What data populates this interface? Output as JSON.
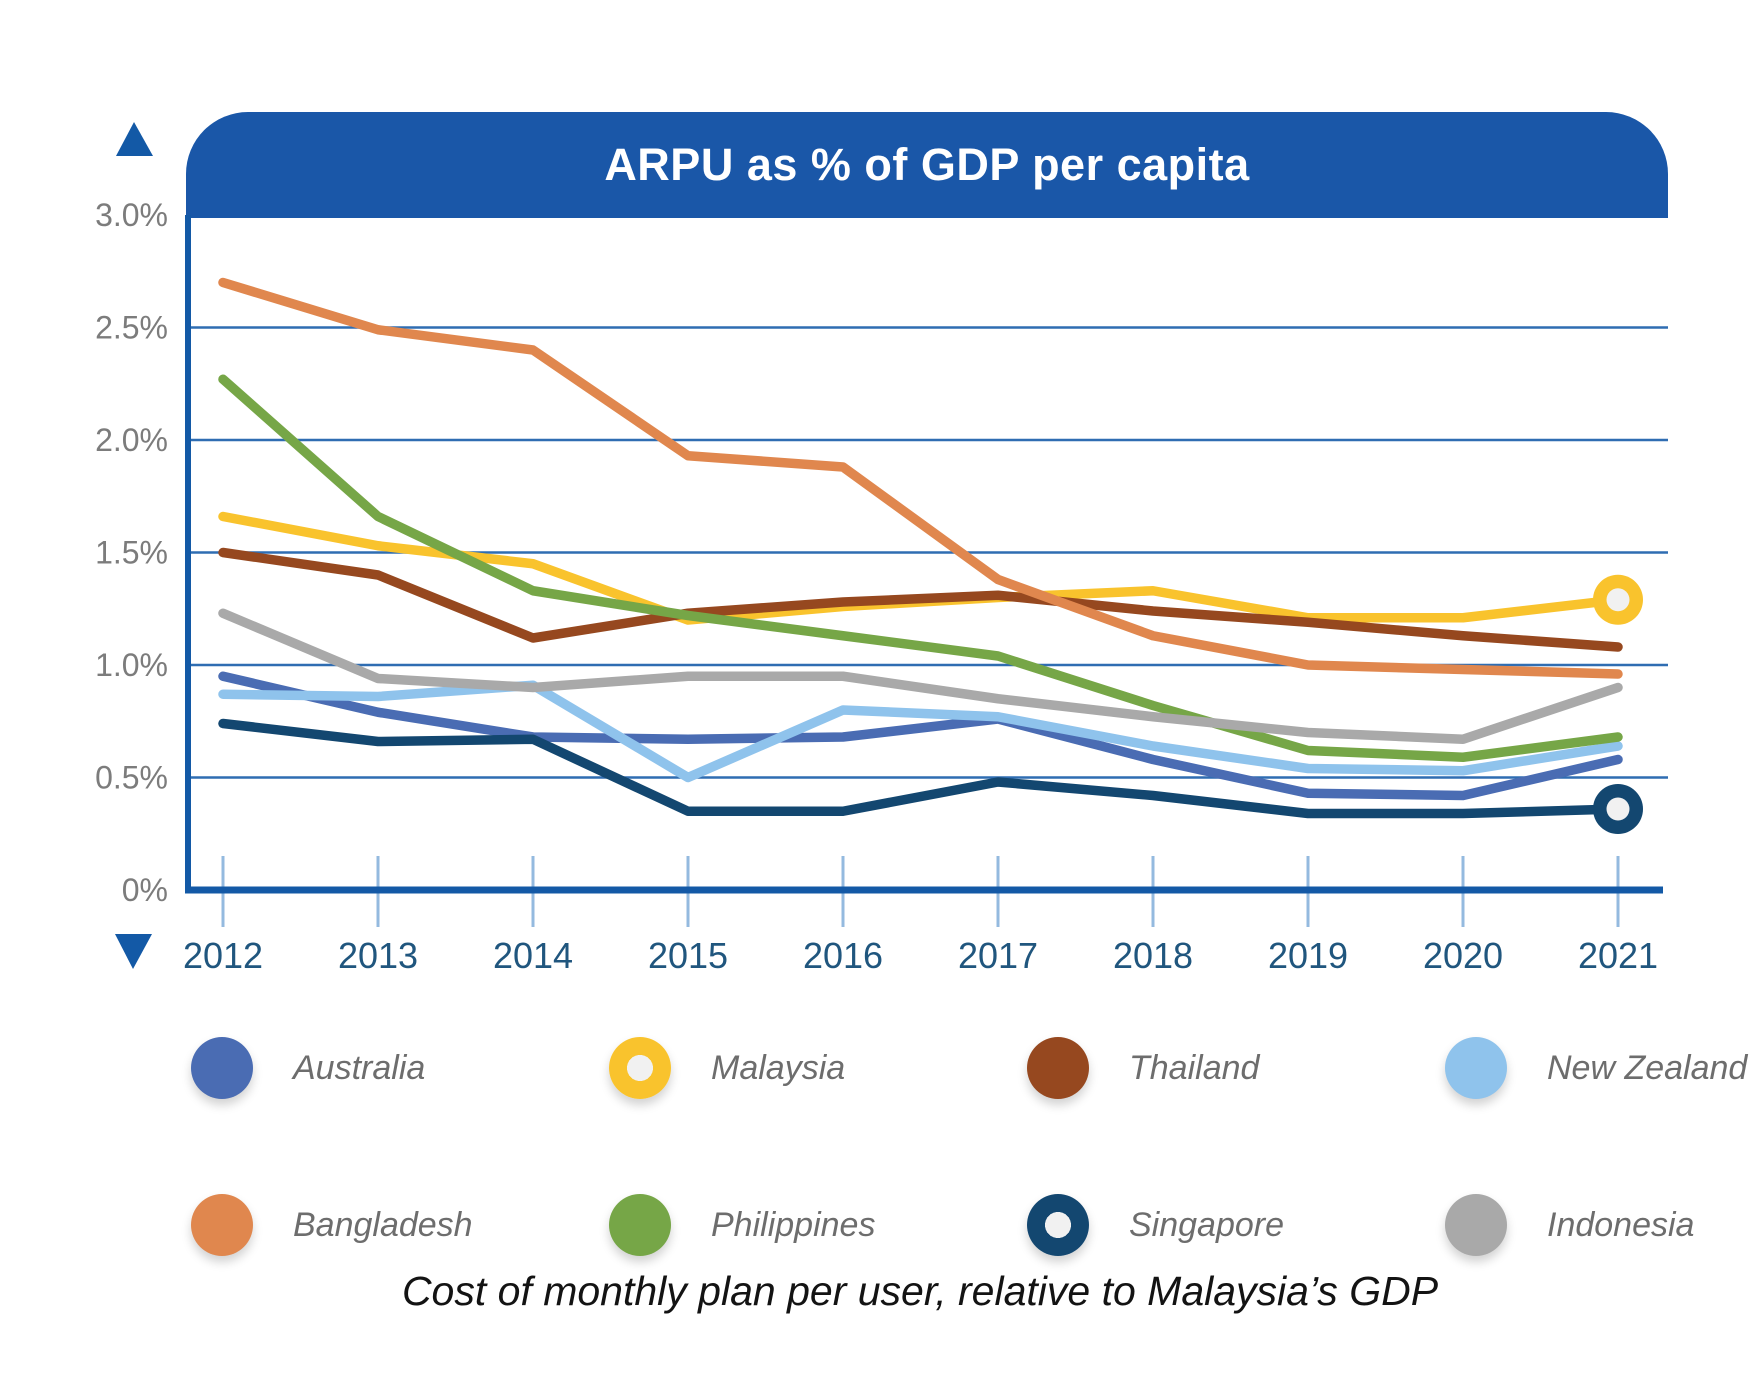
{
  "title": "ARPU as % of GDP per capita",
  "caption": "Cost of monthly plan per user, relative to Malaysia’s GDP",
  "colors": {
    "header_blue": "#1a57a8",
    "axis_blue": "#1359a6",
    "gridline_blue": "#2f6db2",
    "tick_blue": "#94badf",
    "year_label": "#20567e",
    "y_label": "#7c7c7c",
    "legend_label": "#6d6d6d",
    "marker_fill": "#f1f1f1"
  },
  "chart_data": {
    "type": "line",
    "title": "ARPU as % of GDP per capita",
    "xlabel": "",
    "ylabel": "",
    "ylim": [
      0,
      3
    ],
    "grid": "horizontal",
    "legend_position": "bottom",
    "categories": [
      "2012",
      "2013",
      "2014",
      "2015",
      "2016",
      "2017",
      "2018",
      "2019",
      "2020",
      "2021"
    ],
    "y_tick_values": [
      0,
      0.5,
      1.0,
      1.5,
      2.0,
      2.5,
      3.0
    ],
    "y_tick_labels": [
      "0%",
      "0.5%",
      "1.0%",
      "1.5%",
      "2.0%",
      "2.5%",
      "3.0%"
    ],
    "unit": "percent of GDP per capita",
    "series": [
      {
        "name": "Australia",
        "color": "#4a6cb3",
        "marker": "none",
        "values": [
          0.95,
          0.79,
          0.68,
          0.67,
          0.68,
          0.76,
          0.58,
          0.43,
          0.42,
          0.58
        ]
      },
      {
        "name": "Malaysia",
        "color": "#f9c32d",
        "marker": "donut-end",
        "values": [
          1.66,
          1.53,
          1.45,
          1.2,
          1.26,
          1.3,
          1.33,
          1.21,
          1.21,
          1.29
        ]
      },
      {
        "name": "Thailand",
        "color": "#96481f",
        "marker": "none",
        "values": [
          1.5,
          1.4,
          1.12,
          1.23,
          1.28,
          1.31,
          1.24,
          1.19,
          1.13,
          1.08
        ]
      },
      {
        "name": "New Zealand",
        "color": "#8fc3ec",
        "marker": "none",
        "values": [
          0.87,
          0.86,
          0.91,
          0.5,
          0.8,
          0.77,
          0.64,
          0.54,
          0.53,
          0.64
        ]
      },
      {
        "name": "Bangladesh",
        "color": "#e0874e",
        "marker": "none",
        "values": [
          2.7,
          2.49,
          2.4,
          1.93,
          1.88,
          1.38,
          1.13,
          1.0,
          0.98,
          0.96
        ]
      },
      {
        "name": "Philippines",
        "color": "#76a647",
        "marker": "none",
        "values": [
          2.27,
          1.66,
          1.33,
          1.22,
          1.13,
          1.04,
          0.82,
          0.62,
          0.59,
          0.68
        ]
      },
      {
        "name": "Singapore",
        "color": "#134770",
        "marker": "donut-end",
        "values": [
          0.74,
          0.66,
          0.67,
          0.35,
          0.35,
          0.48,
          0.42,
          0.34,
          0.34,
          0.36
        ]
      },
      {
        "name": "Indonesia",
        "color": "#a9a9a9",
        "marker": "none",
        "values": [
          1.23,
          0.94,
          0.9,
          0.95,
          0.95,
          0.85,
          0.77,
          0.7,
          0.67,
          0.9
        ]
      }
    ]
  }
}
